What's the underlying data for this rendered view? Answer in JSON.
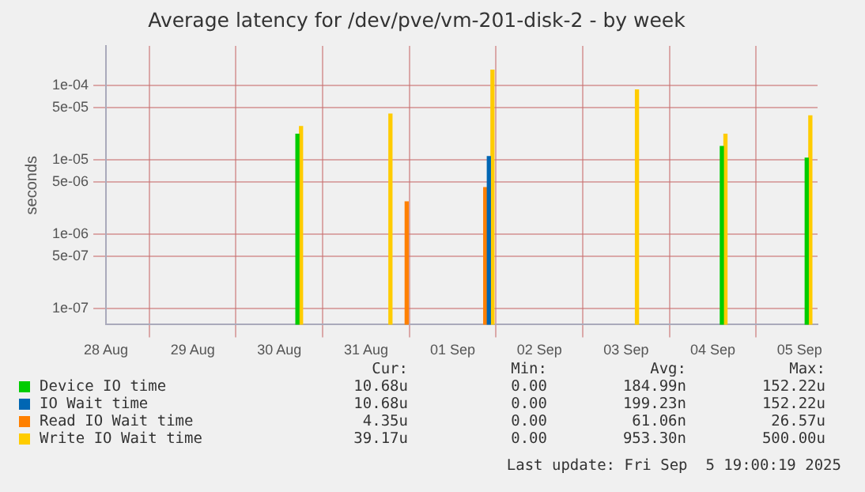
{
  "chart_data": {
    "type": "bar",
    "title": "Average latency for /dev/pve/vm-201-disk-2 - by week",
    "ylabel": "seconds",
    "xlim": [
      "2025-08-28T00:00",
      "2025-09-05T05:00"
    ],
    "xticks": [
      {
        "value": "2025-08-28",
        "label": "28 Aug"
      },
      {
        "value": "2025-08-29",
        "label": "29 Aug"
      },
      {
        "value": "2025-08-30",
        "label": "30 Aug"
      },
      {
        "value": "2025-08-31",
        "label": "31 Aug"
      },
      {
        "value": "2025-09-01",
        "label": "01 Sep"
      },
      {
        "value": "2025-09-02",
        "label": "02 Sep"
      },
      {
        "value": "2025-09-03",
        "label": "03 Sep"
      },
      {
        "value": "2025-09-04",
        "label": "04 Sep"
      },
      {
        "value": "2025-09-05",
        "label": "05 Sep"
      }
    ],
    "ylim": [
      6e-08,
      0.00034
    ],
    "log": true,
    "yticks": [
      {
        "value": 1e-07,
        "label": "1e-07"
      },
      {
        "value": 5e-07,
        "label": "5e-07"
      },
      {
        "value": 1e-06,
        "label": "1e-06"
      },
      {
        "value": 5e-06,
        "label": "5e-06"
      },
      {
        "value": 1e-05,
        "label": "1e-05"
      },
      {
        "value": 5e-05,
        "label": "5e-05"
      },
      {
        "value": 0.0001,
        "label": "1e-04"
      }
    ],
    "grid": true,
    "legend": "bottom",
    "series": [
      {
        "name": "Device IO time",
        "color": "#00cc00",
        "x": [
          "2025-08-30T05:00",
          "2025-09-04T02:30",
          "2025-09-05T02:00"
        ],
        "values": [
          2.2e-05,
          1.5e-05,
          1.05e-05
        ]
      },
      {
        "name": "IO Wait time",
        "color": "#0066b3",
        "x": [
          "2025-09-01T10:00"
        ],
        "values": [
          1.1e-05
        ]
      },
      {
        "name": "Read IO Wait time",
        "color": "#ff8000",
        "x": [
          "2025-08-31T11:15",
          "2025-09-01T09:00"
        ],
        "values": [
          2.7e-06,
          4.2e-06
        ]
      },
      {
        "name": "Write IO Wait time",
        "color": "#ffcc00",
        "x": [
          "2025-08-30T06:00",
          "2025-08-31T06:45",
          "2025-09-01T11:00",
          "2025-09-03T03:00",
          "2025-09-04T03:30",
          "2025-09-05T03:00"
        ],
        "values": [
          2.8e-05,
          4.1e-05,
          0.00016,
          8.7e-05,
          2.2e-05,
          3.9e-05
        ]
      }
    ],
    "annotations": [
      "Cur:",
      "Min:",
      "Avg:",
      "Max:",
      "10.68u",
      "0.00",
      "184.99n",
      "152.22u",
      "10.68u",
      "0.00",
      "199.23n",
      "152.22u",
      "4.35u",
      "0.00",
      "61.06n",
      "26.57u",
      "39.17u",
      "0.00",
      "953.30n",
      "500.00u",
      "Last update: Fri Sep  5 19:00:19 2025"
    ]
  }
}
